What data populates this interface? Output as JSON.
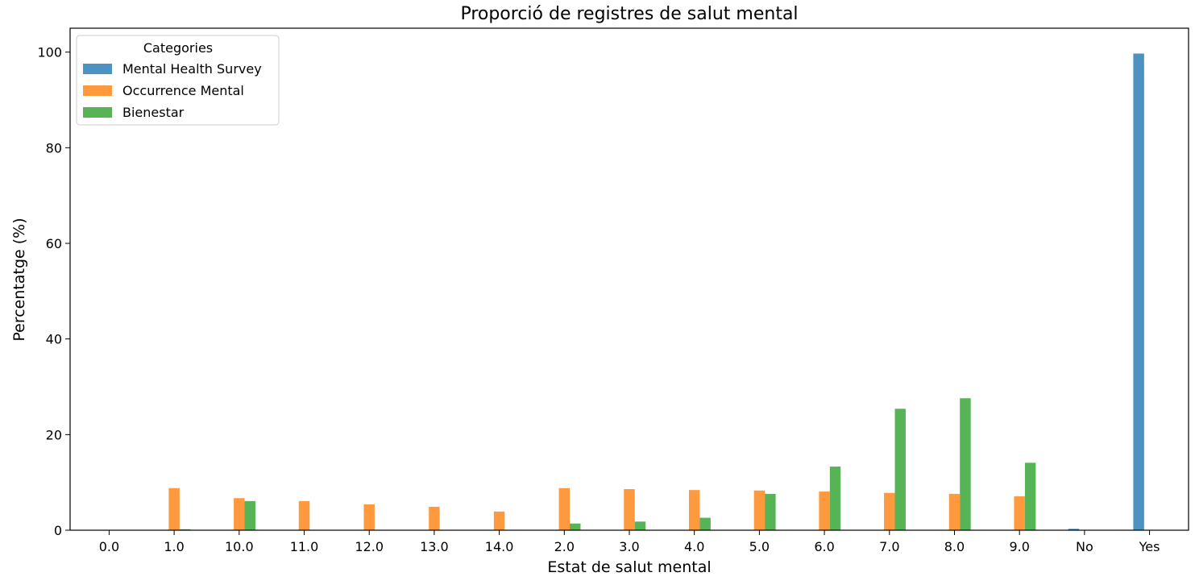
{
  "chart_data": {
    "type": "bar",
    "title": "Proporció de registres de salut mental",
    "xlabel": "Estat de salut mental",
    "ylabel": "Percentatge (%)",
    "ylim": [
      0,
      105
    ],
    "yticks": [
      0,
      20,
      40,
      60,
      80,
      100
    ],
    "grid": false,
    "legend_title": "Categories",
    "legend_position": "top-left",
    "categories": [
      "0.0",
      "1.0",
      "10.0",
      "11.0",
      "12.0",
      "13.0",
      "14.0",
      "2.0",
      "3.0",
      "4.0",
      "5.0",
      "6.0",
      "7.0",
      "8.0",
      "9.0",
      "No",
      "Yes"
    ],
    "series": [
      {
        "name": "Mental Health Survey",
        "color": "#1f77b4",
        "values": [
          0,
          0,
          0,
          0,
          0,
          0,
          0,
          0,
          0,
          0,
          0,
          0,
          0,
          0,
          0,
          0.3,
          99.7
        ]
      },
      {
        "name": "Occurrence Mental",
        "color": "#ff7f0e",
        "values": [
          0,
          8.8,
          6.7,
          6.1,
          5.4,
          4.9,
          3.9,
          8.8,
          8.6,
          8.4,
          8.3,
          8.1,
          7.8,
          7.6,
          7.1,
          0,
          0
        ]
      },
      {
        "name": "Bienestar",
        "color": "#2ca02c",
        "values": [
          0,
          0.2,
          6.1,
          0,
          0,
          0,
          0,
          1.4,
          1.8,
          2.6,
          7.6,
          13.3,
          25.4,
          27.6,
          14.1,
          0,
          0
        ]
      }
    ]
  }
}
